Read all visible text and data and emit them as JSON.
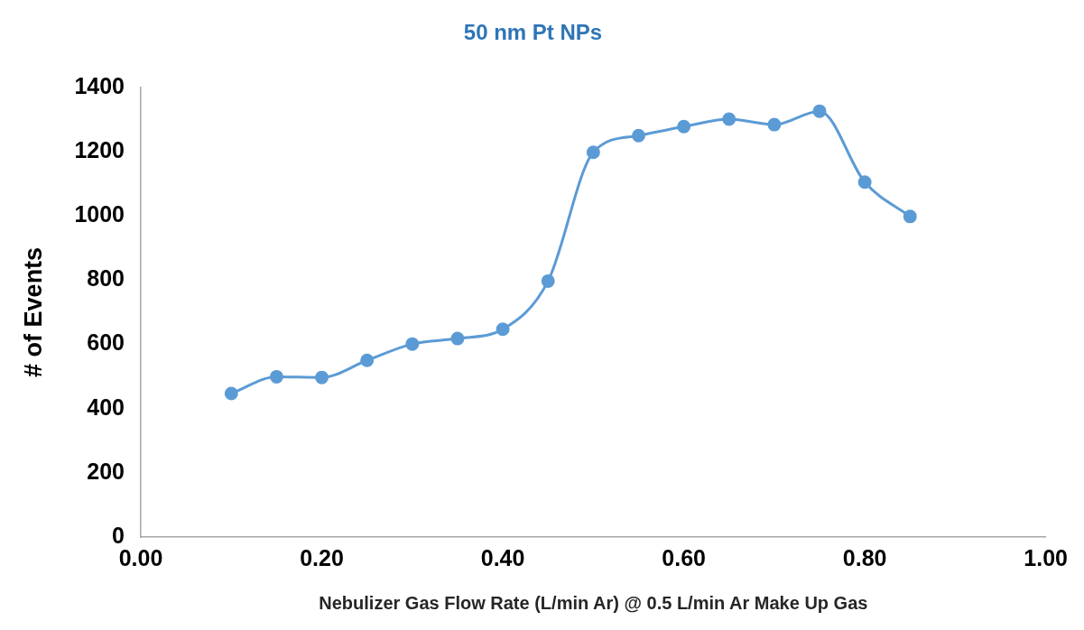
{
  "chart_data": {
    "type": "line",
    "title": "50 nm Pt NPs",
    "xlabel": "Nebulizer Gas Flow Rate (L/min Ar) @ 0.5 L/min Ar Make Up Gas",
    "ylabel": "# of Events",
    "x": [
      0.1,
      0.15,
      0.2,
      0.25,
      0.3,
      0.35,
      0.4,
      0.45,
      0.5,
      0.55,
      0.6,
      0.65,
      0.7,
      0.75,
      0.8,
      0.85
    ],
    "series": [
      {
        "color": "#5b9bd5",
        "values": [
          447,
          499,
          497,
          550,
          601,
          618,
          647,
          797,
          1198,
          1250,
          1278,
          1301,
          1284,
          1326,
          1105,
          998
        ]
      }
    ],
    "xlim": [
      0,
      1
    ],
    "xticks": [
      {
        "value": 0,
        "label": "0.00"
      },
      {
        "value": 0.2,
        "label": "0.20"
      },
      {
        "value": 0.4,
        "label": "0.40"
      },
      {
        "value": 0.6,
        "label": "0.60"
      },
      {
        "value": 0.8,
        "label": "0.80"
      },
      {
        "value": 1,
        "label": "1.00"
      }
    ],
    "ylim": [
      0,
      1400
    ],
    "yticks": [
      0,
      200,
      400,
      600,
      800,
      1000,
      1200,
      1400
    ],
    "grid": false,
    "legend": false,
    "marker": "circle",
    "line_style": "solid"
  }
}
